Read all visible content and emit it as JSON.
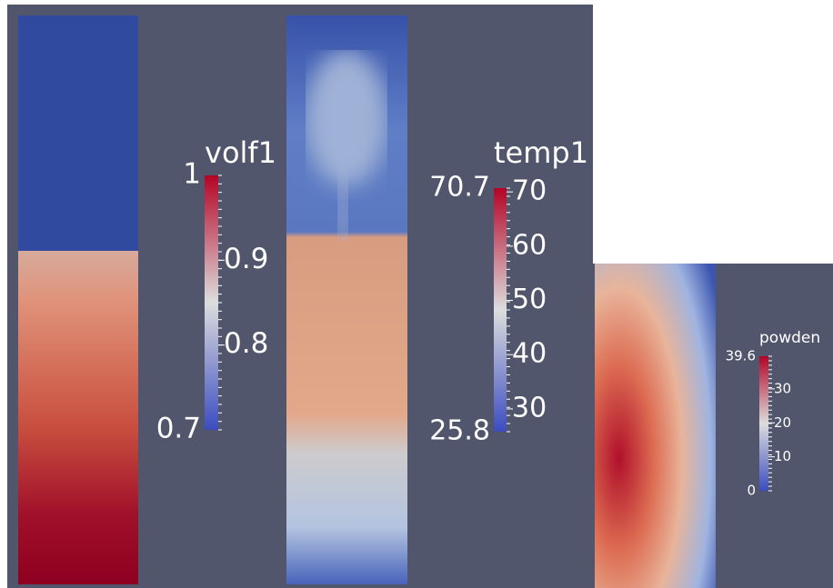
{
  "panels": [
    {
      "title": "volf1",
      "range": [
        0.7,
        1
      ],
      "ticks": [
        0.9,
        0.8
      ]
    },
    {
      "title": "temp1",
      "range": [
        25.8,
        70.7
      ],
      "ticks": [
        70,
        60,
        50,
        40,
        30
      ]
    },
    {
      "title": "powden",
      "range": [
        0,
        39.6
      ],
      "ticks": [
        30,
        20,
        10
      ]
    }
  ]
}
